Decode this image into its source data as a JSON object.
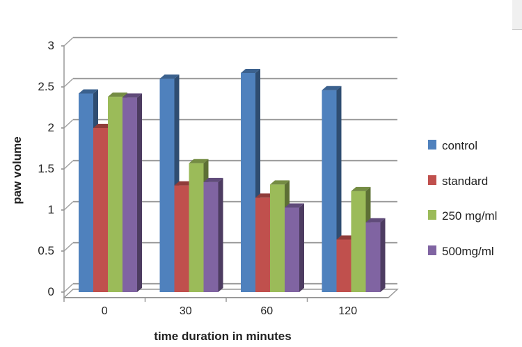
{
  "chart_data": {
    "type": "bar",
    "title": "",
    "xlabel": "time duration in minutes",
    "ylabel": "paw volume",
    "categories": [
      "0",
      "30",
      "60",
      "120"
    ],
    "ylim": [
      0,
      3
    ],
    "yticks": [
      "0",
      "0.5",
      "1",
      "1.5",
      "2",
      "2.5",
      "3"
    ],
    "grid": true,
    "legend_position": "right",
    "style": "3d-clustered-column",
    "series": [
      {
        "name": "control",
        "color": "#4f81bd",
        "values": [
          2.42,
          2.6,
          2.67,
          2.46
        ]
      },
      {
        "name": "standard",
        "color": "#c0504d",
        "values": [
          2.0,
          1.3,
          1.15,
          0.64
        ]
      },
      {
        "name": "250 mg/ml",
        "color": "#9bbb59",
        "values": [
          2.38,
          1.57,
          1.31,
          1.23
        ]
      },
      {
        "name": "500mg/ml",
        "color": "#8064a2",
        "values": [
          2.37,
          1.34,
          1.03,
          0.85
        ]
      }
    ]
  }
}
